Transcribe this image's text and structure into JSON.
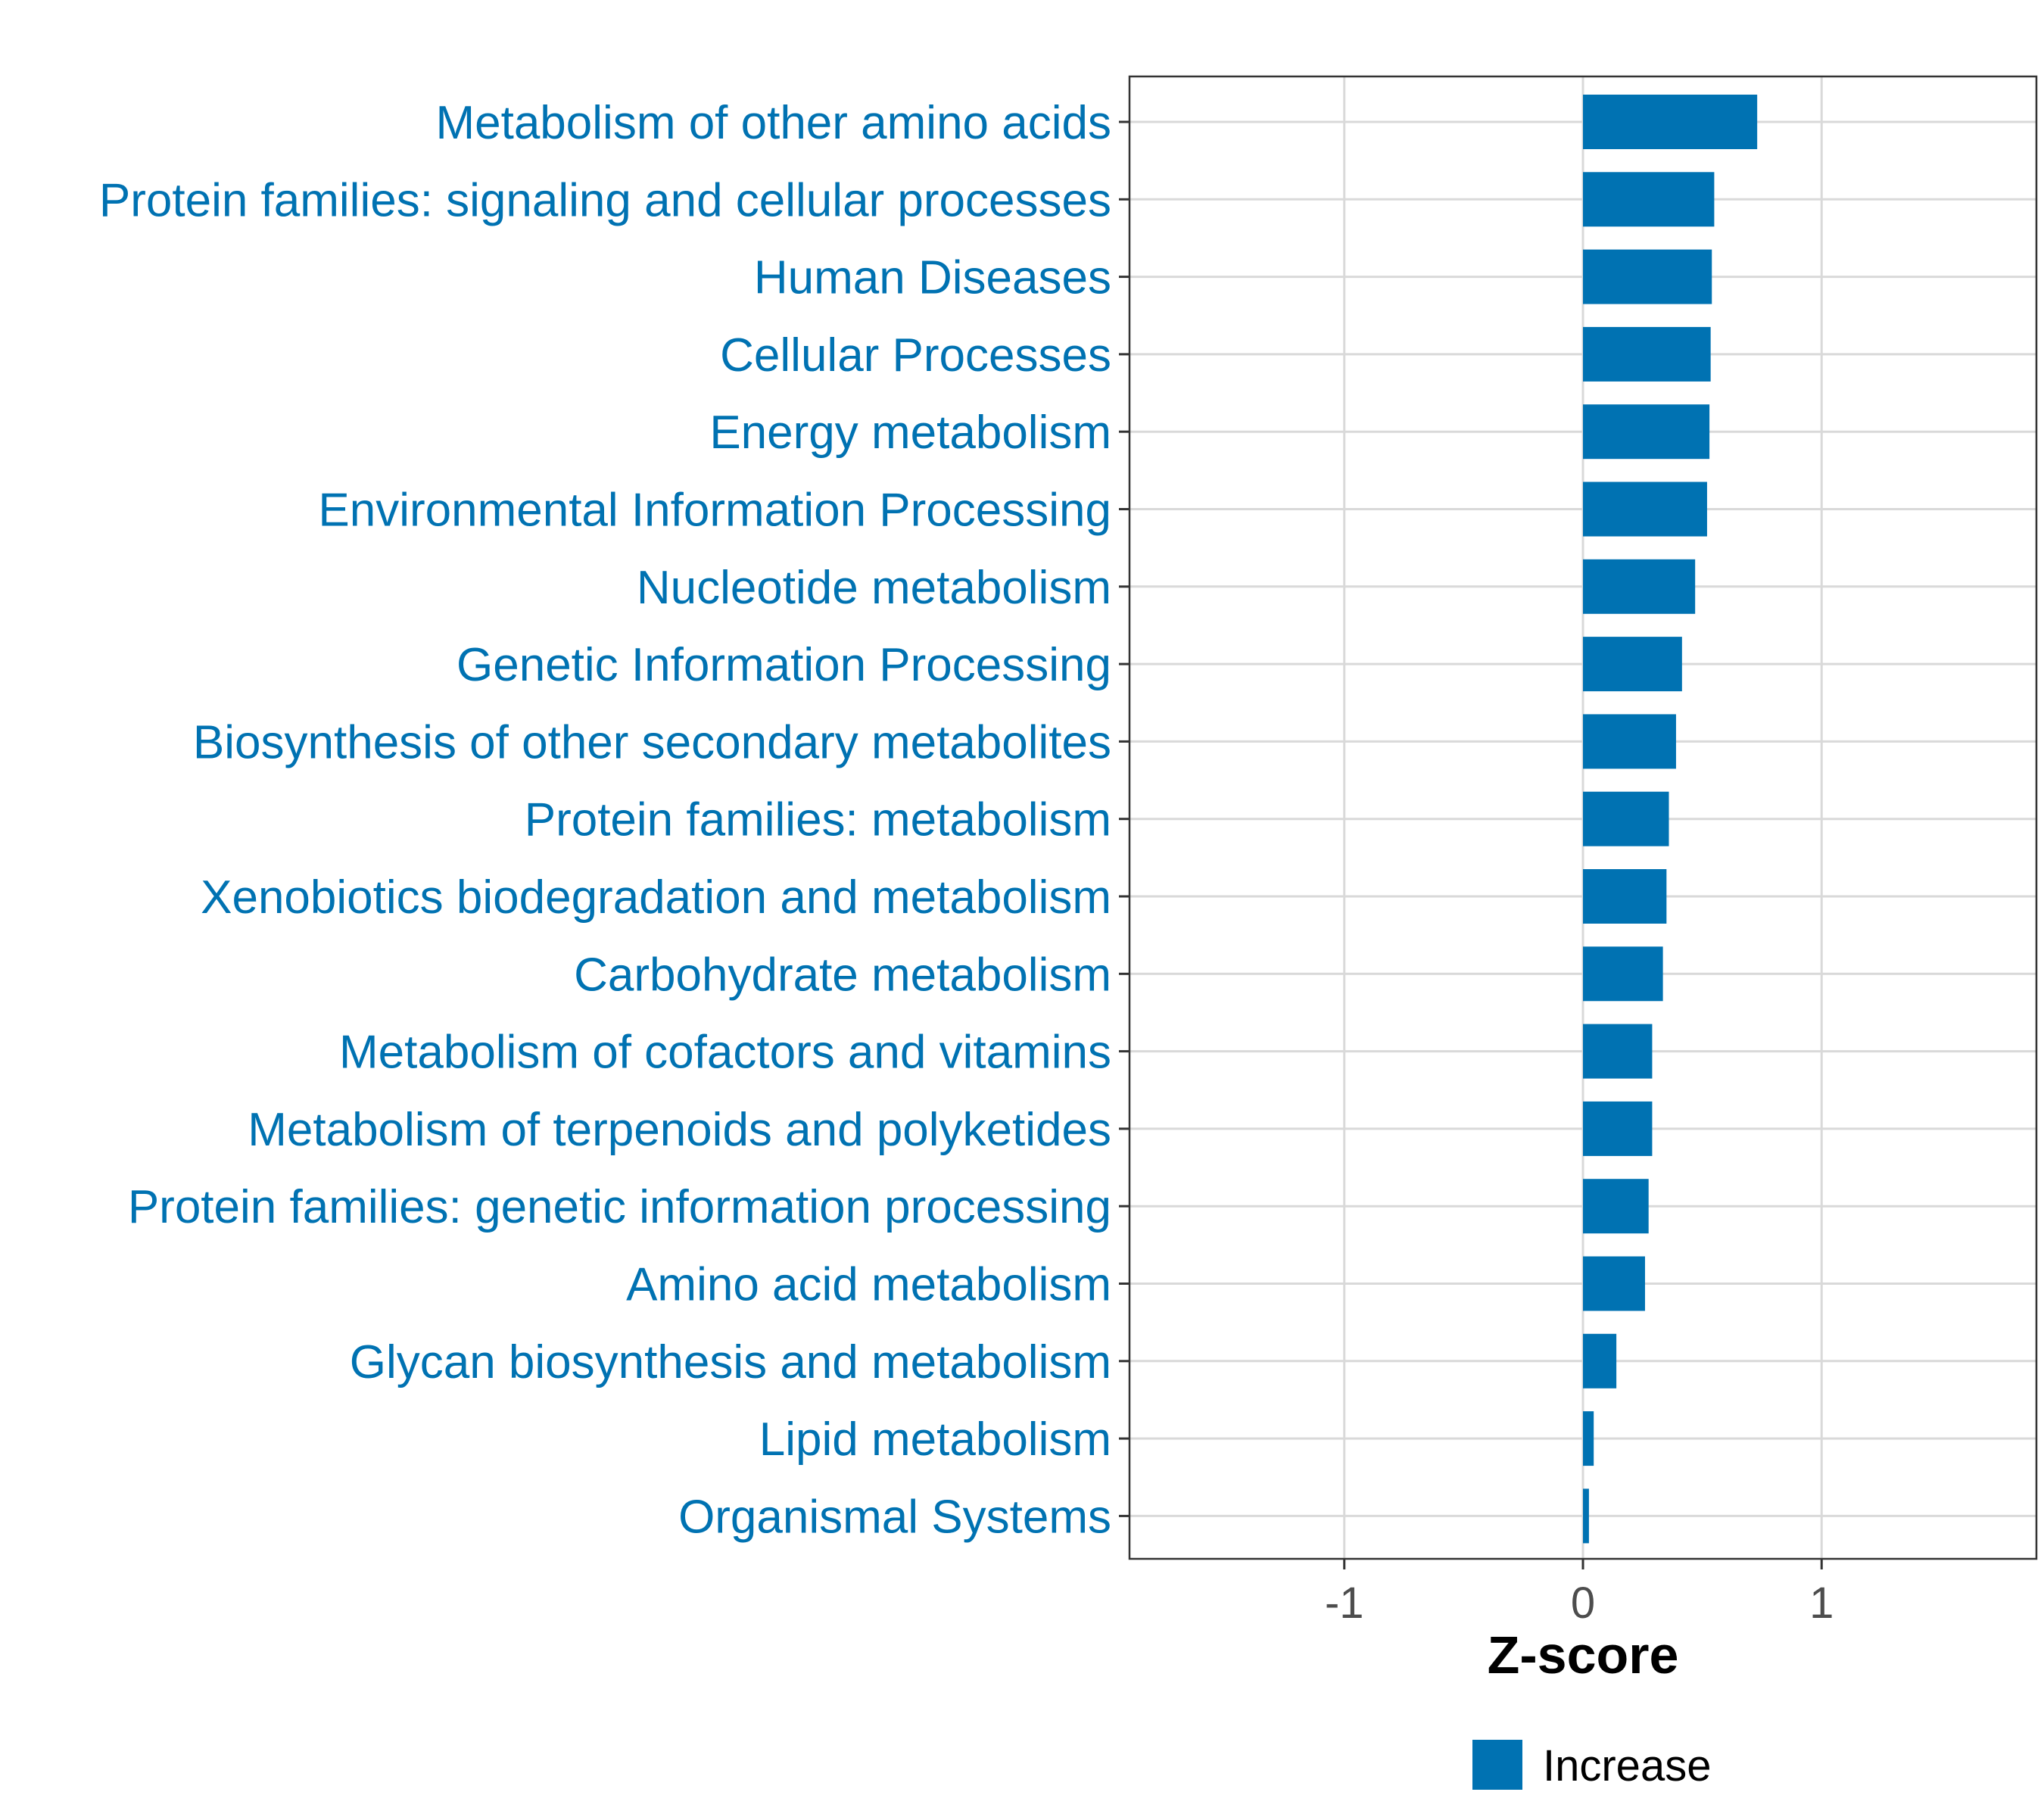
{
  "chart_data": {
    "type": "bar",
    "orientation": "horizontal",
    "title": "",
    "xlabel": "Z-score",
    "ylabel": "",
    "xlim": [
      -1.9,
      1.9
    ],
    "xticks": [
      -1,
      0,
      1
    ],
    "xtick_labels": [
      "-1",
      "0",
      "1"
    ],
    "grid": true,
    "categories": [
      "Metabolism of other amino acids",
      "Protein families: signaling and cellular processes",
      "Human Diseases",
      "Cellular Processes",
      "Energy metabolism",
      "Environmental Information Processing",
      "Nucleotide metabolism",
      "Genetic Information Processing",
      "Biosynthesis of other secondary metabolites",
      "Protein families: metabolism",
      "Xenobiotics biodegradation and metabolism",
      "Carbohydrate metabolism",
      "Metabolism of cofactors and vitamins",
      "Metabolism of terpenoids and polyketides",
      "Protein families: genetic information processing",
      "Amino acid metabolism",
      "Glycan biosynthesis and metabolism",
      "Lipid metabolism",
      "Organismal Systems"
    ],
    "series": [
      {
        "name": "Increase",
        "color": "#0072B2",
        "values": [
          0.73,
          0.55,
          0.54,
          0.535,
          0.53,
          0.52,
          0.47,
          0.415,
          0.39,
          0.36,
          0.35,
          0.335,
          0.29,
          0.29,
          0.275,
          0.26,
          0.14,
          0.045,
          0.025
        ]
      }
    ],
    "legend": {
      "position": "bottom",
      "entries": [
        "Increase"
      ]
    },
    "label_color": "#0072B2"
  }
}
